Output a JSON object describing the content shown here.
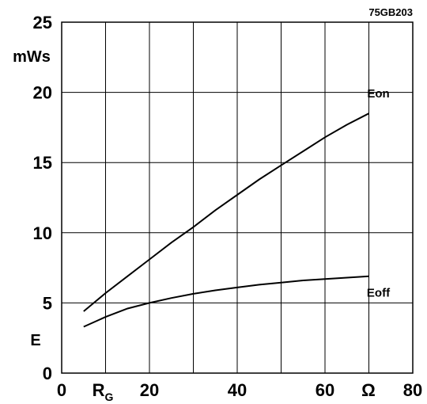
{
  "chart_data": {
    "type": "line",
    "code": "75GB203",
    "y_unit": "mWs",
    "y_symbol": "E",
    "x_symbol_main": "R",
    "x_symbol_sub": "G",
    "x_unit": "Ω",
    "xlim": [
      0,
      80
    ],
    "ylim": [
      0,
      25
    ],
    "x_ticks": [
      "0",
      "20",
      "40",
      "60",
      "80"
    ],
    "y_ticks": [
      "0",
      "5",
      "10",
      "15",
      "20",
      "25"
    ],
    "grid": true,
    "series": [
      {
        "name": "Eon",
        "x": [
          5,
          10,
          15,
          20,
          25,
          30,
          35,
          40,
          45,
          50,
          55,
          60,
          65,
          70
        ],
        "y": [
          4.4,
          5.7,
          6.9,
          8.1,
          9.3,
          10.4,
          11.6,
          12.7,
          13.8,
          14.8,
          15.8,
          16.8,
          17.7,
          18.5
        ]
      },
      {
        "name": "Eoff",
        "x": [
          5,
          10,
          15,
          20,
          25,
          30,
          35,
          40,
          45,
          50,
          55,
          60,
          65,
          70
        ],
        "y": [
          3.3,
          4.0,
          4.6,
          5.0,
          5.35,
          5.65,
          5.9,
          6.1,
          6.3,
          6.45,
          6.6,
          6.7,
          6.8,
          6.9
        ]
      }
    ]
  }
}
